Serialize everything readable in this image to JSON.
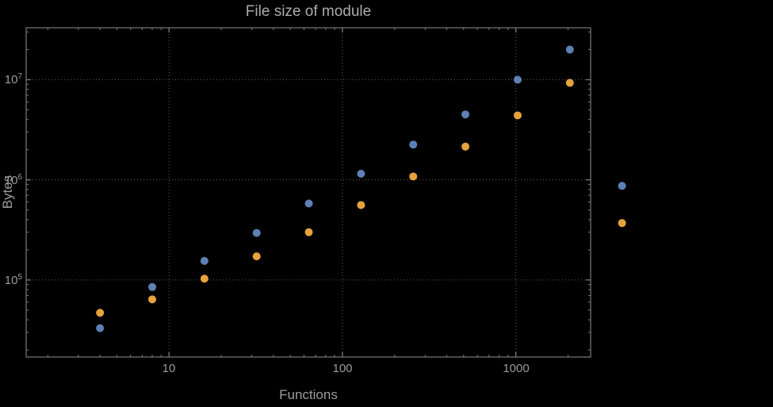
{
  "chart_data": {
    "type": "scatter",
    "title": "File size of module",
    "xlabel": "Functions",
    "ylabel": "Bytes",
    "x_scale": "log",
    "y_scale": "log",
    "xlim": [
      1.5,
      2700
    ],
    "ylim": [
      17000,
      33000000
    ],
    "grid": "dotted",
    "legend": "none",
    "x_grid": [
      10,
      100,
      1000
    ],
    "y_grid": [
      100000,
      1000000,
      10000000
    ],
    "x_tick_labels": [
      "10",
      "100",
      "1000"
    ],
    "y_tick_labels": [
      {
        "base": "10",
        "exp": "5"
      },
      {
        "base": "10",
        "exp": "6"
      },
      {
        "base": "10",
        "exp": "7"
      }
    ],
    "colors": {
      "blue": "#5e81b5",
      "orange": "#e6a33c"
    },
    "series": [
      {
        "name": "blue",
        "color": "#5e81b5",
        "points": [
          [
            4,
            33000
          ],
          [
            8,
            85000
          ],
          [
            16,
            155000
          ],
          [
            32,
            295000
          ],
          [
            64,
            580000
          ],
          [
            128,
            1150000
          ],
          [
            256,
            2250000
          ],
          [
            512,
            4500000
          ],
          [
            1024,
            10000000
          ],
          [
            2048,
            20000000
          ],
          [
            4096,
            870000
          ]
        ]
      },
      {
        "name": "orange",
        "color": "#e6a33c",
        "points": [
          [
            4,
            47000
          ],
          [
            8,
            64000
          ],
          [
            16,
            103000
          ],
          [
            32,
            172000
          ],
          [
            64,
            300000
          ],
          [
            128,
            560000
          ],
          [
            256,
            1080000
          ],
          [
            512,
            2150000
          ],
          [
            1024,
            4400000
          ],
          [
            2048,
            9300000
          ],
          [
            4096,
            370000
          ]
        ]
      }
    ]
  }
}
